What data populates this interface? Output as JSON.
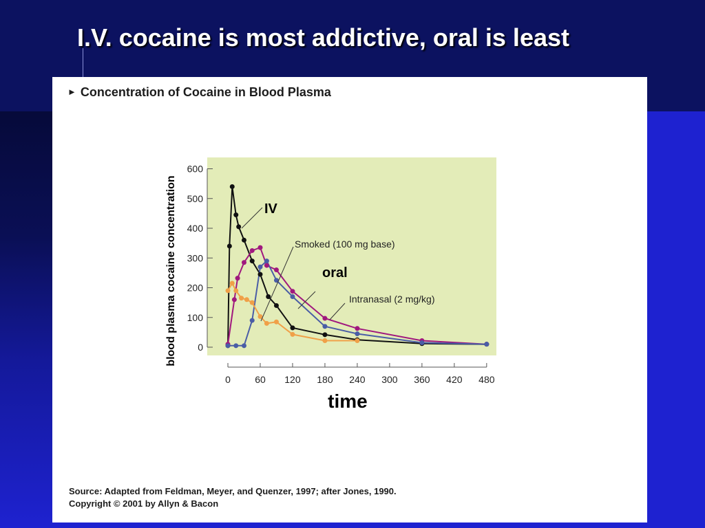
{
  "slide": {
    "title": "I.V. cocaine is most addictive, oral is least"
  },
  "figure": {
    "title": "Concentration of Cocaine in Blood Plasma",
    "source": "Source: Adapted from Feldman, Meyer, and Quenzer, 1997; after Jones, 1990.",
    "copyright": "Copyright © 2001 by Allyn & Bacon"
  },
  "chart_data": {
    "type": "line",
    "xlabel": "time",
    "ylabel": "blood plasma cocaine concentration",
    "xlim": [
      -20,
      490
    ],
    "ylim": [
      -20,
      640
    ],
    "xticks": [
      0,
      60,
      120,
      180,
      240,
      300,
      360,
      420,
      480
    ],
    "yticks": [
      0,
      100,
      200,
      300,
      400,
      500,
      600
    ],
    "grid": false,
    "plot_background": "#e3ecb8",
    "annotations": [
      "IV",
      "Smoked (100 mg base)",
      "oral",
      "Intranasal (2 mg/kg)"
    ],
    "series": [
      {
        "id": "iv",
        "color": "#111111",
        "x": [
          0,
          3,
          8,
          15,
          20,
          30,
          45,
          60,
          75,
          90,
          120,
          180,
          240,
          360,
          480
        ],
        "y": [
          5,
          340,
          540,
          445,
          405,
          360,
          290,
          245,
          170,
          140,
          65,
          42,
          25,
          12,
          10
        ]
      },
      {
        "id": "smoked",
        "color": "#a0187e",
        "x": [
          0,
          12,
          18,
          30,
          45,
          60,
          72,
          90,
          120,
          180,
          240,
          360,
          480
        ],
        "y": [
          10,
          160,
          232,
          285,
          325,
          335,
          275,
          260,
          188,
          97,
          63,
          22,
          10
        ]
      },
      {
        "id": "intranasal",
        "color": "#4a5da6",
        "x": [
          0,
          15,
          30,
          45,
          60,
          72,
          90,
          120,
          180,
          240,
          360,
          480
        ],
        "y": [
          5,
          5,
          5,
          90,
          270,
          290,
          225,
          170,
          70,
          45,
          15,
          10
        ]
      },
      {
        "id": "oral",
        "color": "#f0a048",
        "x": [
          0,
          8,
          15,
          25,
          35,
          45,
          60,
          72,
          90,
          120,
          180,
          240
        ],
        "y": [
          190,
          215,
          190,
          165,
          160,
          150,
          103,
          80,
          85,
          43,
          22,
          22
        ]
      }
    ]
  }
}
